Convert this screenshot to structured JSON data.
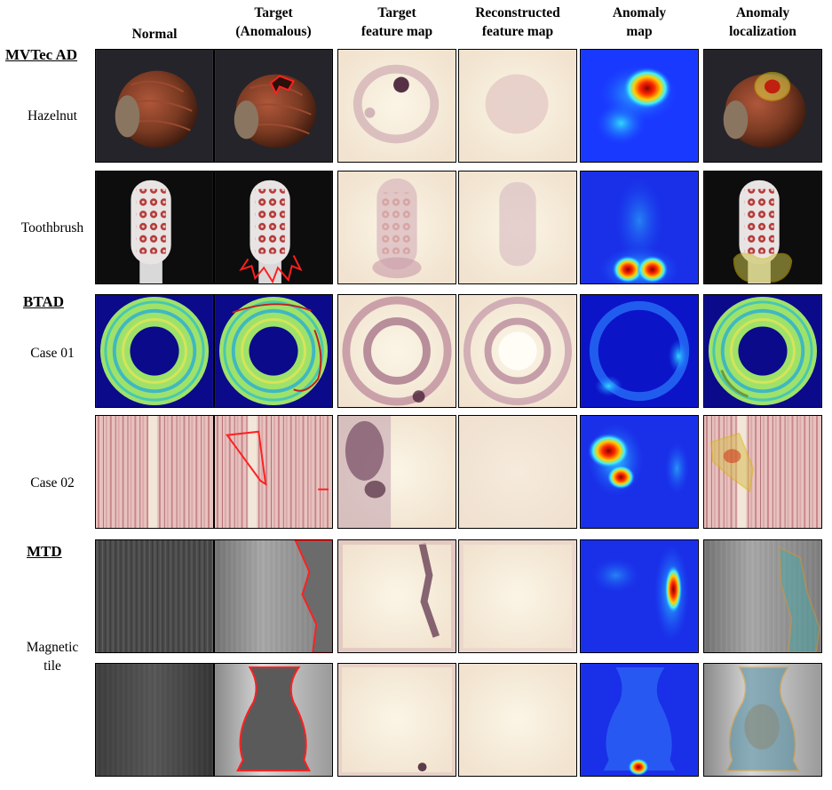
{
  "columns": [
    "Normal",
    "Target (Anomalous)",
    "Target feature map",
    "Reconstructed feature map",
    "Anomaly map",
    "Anomaly localization"
  ],
  "column_lines": [
    [
      "Normal"
    ],
    [
      "Target",
      "(Anomalous)"
    ],
    [
      "Target",
      "feature map"
    ],
    [
      "Reconstructed",
      "feature map"
    ],
    [
      "Anomaly",
      "map"
    ],
    [
      "Anomaly",
      "localization"
    ]
  ],
  "datasets": [
    "MVTec AD",
    "BTAD",
    "MTD"
  ],
  "categories": [
    "Hazelnut",
    "Toothbrush",
    "Case 01",
    "Case 02",
    "Magnetic",
    "tile"
  ]
}
